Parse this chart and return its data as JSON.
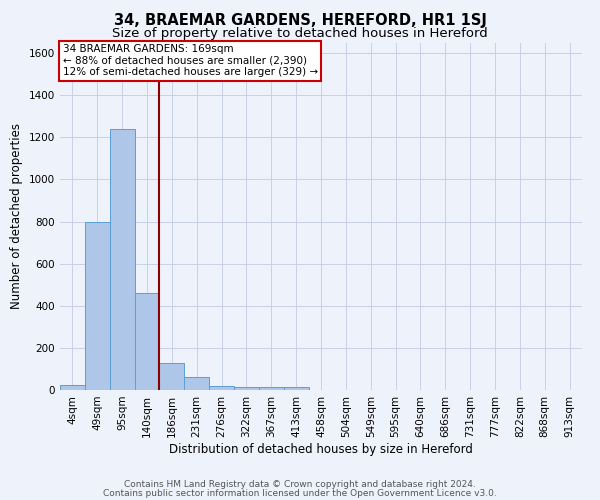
{
  "title": "34, BRAEMAR GARDENS, HEREFORD, HR1 1SJ",
  "subtitle": "Size of property relative to detached houses in Hereford",
  "xlabel": "Distribution of detached houses by size in Hereford",
  "ylabel": "Number of detached properties",
  "bar_labels": [
    "4sqm",
    "49sqm",
    "95sqm",
    "140sqm",
    "186sqm",
    "231sqm",
    "276sqm",
    "322sqm",
    "367sqm",
    "413sqm",
    "458sqm",
    "504sqm",
    "549sqm",
    "595sqm",
    "640sqm",
    "686sqm",
    "731sqm",
    "777sqm",
    "822sqm",
    "868sqm",
    "913sqm"
  ],
  "bar_values": [
    22,
    800,
    1240,
    460,
    130,
    60,
    20,
    15,
    13,
    13,
    0,
    0,
    0,
    0,
    0,
    0,
    0,
    0,
    0,
    0,
    0
  ],
  "bar_color": "#aec6e8",
  "bar_edge_color": "#5a9fd4",
  "ylim": [
    0,
    1650
  ],
  "yticks": [
    0,
    200,
    400,
    600,
    800,
    1000,
    1200,
    1400,
    1600
  ],
  "red_line_x": 3.5,
  "annotation_text": "34 BRAEMAR GARDENS: 169sqm\n← 88% of detached houses are smaller (2,390)\n12% of semi-detached houses are larger (329) →",
  "annotation_box_color": "#ffffff",
  "annotation_box_edge": "#cc0000",
  "footer_line1": "Contains HM Land Registry data © Crown copyright and database right 2024.",
  "footer_line2": "Contains public sector information licensed under the Open Government Licence v3.0.",
  "background_color": "#eef2fb",
  "grid_color": "#c8d0e8",
  "title_fontsize": 10.5,
  "subtitle_fontsize": 9.5,
  "axis_label_fontsize": 8.5,
  "tick_fontsize": 7.5,
  "annotation_fontsize": 7.5,
  "footer_fontsize": 6.5
}
